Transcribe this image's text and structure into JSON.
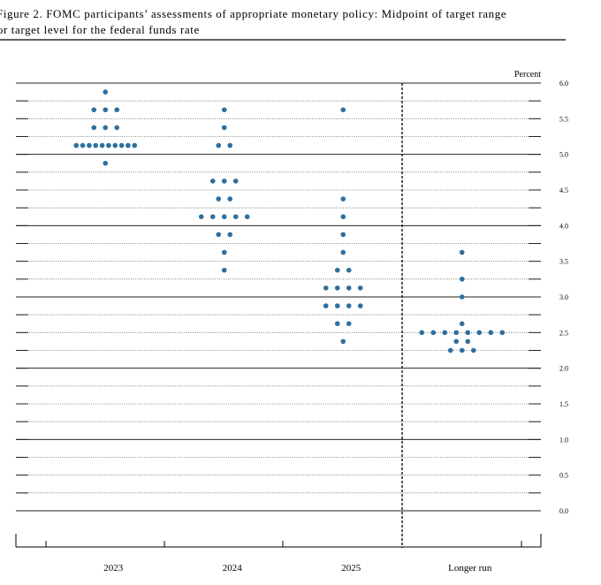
{
  "chart_data": {
    "type": "dot",
    "title_line1": "Figure 2.  FOMC participants’ assessments of appropriate monetary policy:  Midpoint of target range",
    "title_line2": "for target level for the federal funds rate",
    "y_label": "Percent",
    "categories": [
      "2023",
      "2024",
      "2025",
      "Longer run"
    ],
    "dots": [
      [
        5.875,
        5.625,
        5.625,
        5.625,
        5.375,
        5.375,
        5.375,
        5.125,
        5.125,
        5.125,
        5.125,
        5.125,
        5.125,
        5.125,
        5.125,
        5.125,
        5.125,
        4.875
      ],
      [
        5.625,
        5.375,
        5.125,
        5.125,
        4.625,
        4.625,
        4.625,
        4.375,
        4.375,
        4.125,
        4.125,
        4.125,
        4.125,
        4.125,
        3.875,
        3.875,
        3.625,
        3.375
      ],
      [
        5.625,
        4.375,
        4.125,
        3.875,
        3.625,
        3.375,
        3.375,
        3.125,
        3.125,
        3.125,
        3.125,
        2.875,
        2.875,
        2.875,
        2.875,
        2.625,
        2.625,
        2.375
      ],
      [
        3.625,
        3.25,
        3.0,
        2.625,
        2.5,
        2.5,
        2.5,
        2.5,
        2.5,
        2.5,
        2.5,
        2.5,
        2.375,
        2.375,
        2.25,
        2.25,
        2.25
      ]
    ],
    "color": "#2e6f9e",
    "ylim": [
      0,
      6
    ],
    "yticks": [
      {
        "value": 0,
        "label": "0.0"
      },
      0.5,
      {
        "value": 1,
        "label": "1.0"
      },
      1.5,
      {
        "value": 2,
        "label": "2.0"
      },
      2.5,
      {
        "value": 3,
        "label": "3.0"
      },
      3.5,
      {
        "value": 4,
        "label": "4.0"
      },
      4.5,
      {
        "value": 5,
        "label": "5.0"
      },
      5.5,
      {
        "value": 6,
        "label": "6.0"
      }
    ],
    "grid": true
  }
}
